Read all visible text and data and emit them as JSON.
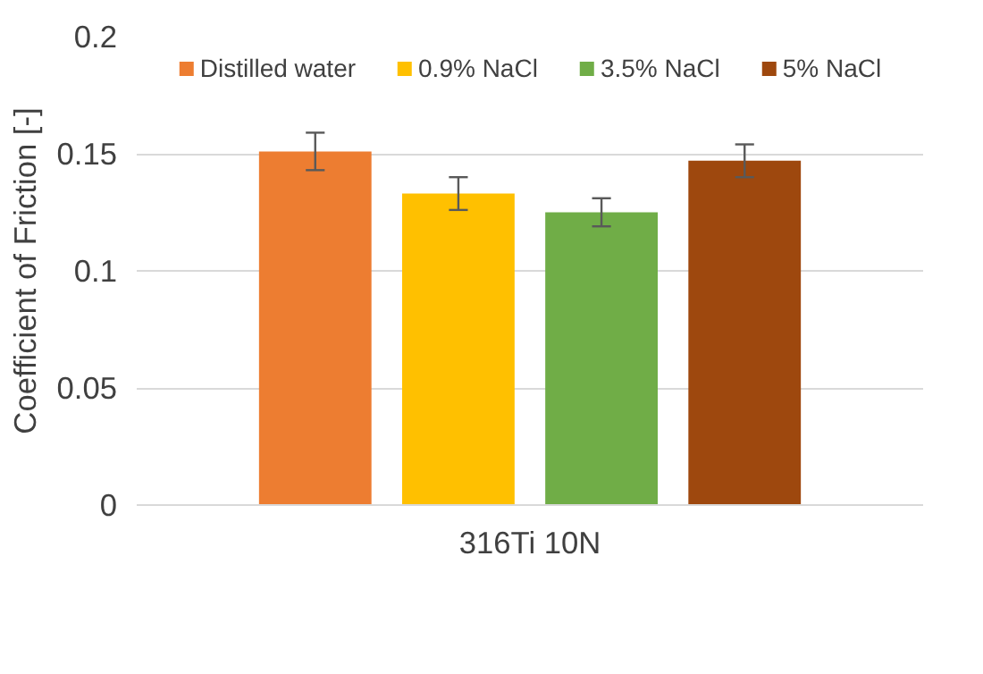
{
  "chart_data": {
    "type": "bar",
    "ylabel": "Coefficient of Friction [-]",
    "categories": [
      "316Ti 10N"
    ],
    "series": [
      {
        "name": "Distilled water",
        "color": "#ed7d31",
        "values": [
          0.151
        ],
        "errors": [
          0.008
        ]
      },
      {
        "name": "0.9% NaCl",
        "color": "#ffc000",
        "values": [
          0.133
        ],
        "errors": [
          0.007
        ]
      },
      {
        "name": "3.5% NaCl",
        "color": "#70ad47",
        "values": [
          0.125
        ],
        "errors": [
          0.006
        ]
      },
      {
        "name": "5% NaCl",
        "color": "#9e480e",
        "values": [
          0.147
        ],
        "errors": [
          0.007
        ]
      }
    ],
    "ylim": [
      0,
      0.2
    ],
    "yticks": [
      0,
      0.05,
      0.1,
      0.15,
      0.2
    ],
    "grid": "y",
    "legend": "top"
  }
}
